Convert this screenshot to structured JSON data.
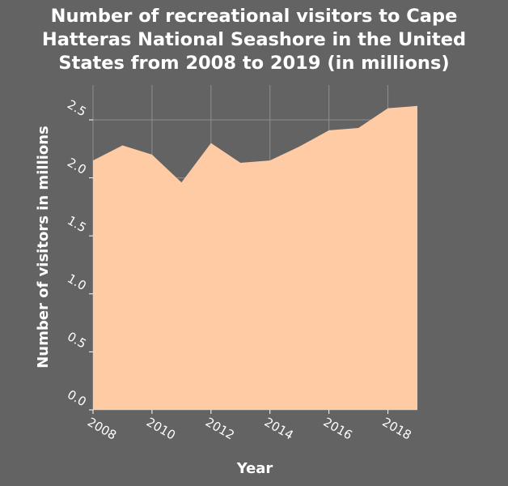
{
  "chart_data": {
    "type": "area",
    "title_lines": [
      "Number of recreational visitors to Cape",
      "Hatteras National Seashore in the United",
      "States from 2008 to 2019 (in millions)"
    ],
    "xlabel": "Year",
    "ylabel": "Number of visitors in millions",
    "x": [
      2008,
      2009,
      2010,
      2011,
      2012,
      2013,
      2014,
      2015,
      2016,
      2017,
      2018,
      2019
    ],
    "values": [
      2.15,
      2.28,
      2.2,
      1.96,
      2.3,
      2.13,
      2.15,
      2.27,
      2.41,
      2.43,
      2.6,
      2.62
    ],
    "x_ticks": [
      "2008",
      "2010",
      "2012",
      "2014",
      "2016",
      "2018"
    ],
    "y_ticks": [
      "0.0",
      "0.5",
      "1.0",
      "1.5",
      "2.0",
      "2.5"
    ],
    "xlim": [
      2008,
      2019
    ],
    "ylim": [
      0,
      2.8
    ],
    "grid": true,
    "colors": {
      "background": "#636363",
      "fill": "#ffcba4",
      "grid": "#8f8f8f",
      "text": "#ffffff"
    }
  }
}
